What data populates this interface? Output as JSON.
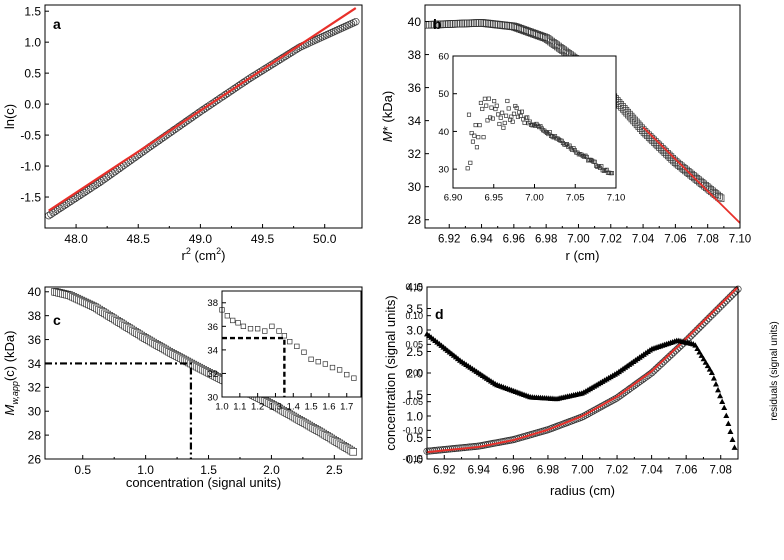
{
  "chart_data": [
    {
      "id": "a",
      "type": "scatter",
      "panel_label": "a",
      "xlabel_main": "r",
      "xlabel_sup": "2",
      "xlabel_unit": " (cm",
      "xlabel_unit_sup": "2",
      "xlabel_close": ")",
      "ylabel": "ln(c)",
      "xlim": [
        47.75,
        50.3
      ],
      "ylim": [
        -2.0,
        1.6
      ],
      "xticks": [
        48.0,
        48.5,
        49.0,
        49.5,
        50.0
      ],
      "xticklabels": [
        "48.0",
        "48.5",
        "49.0",
        "49.5",
        "50.0"
      ],
      "yticks": [
        -1.5,
        -1.0,
        -0.5,
        0.0,
        0.5,
        1.0,
        1.5
      ],
      "yticklabels": [
        "-1.5",
        "-1.0",
        "-0.5",
        "0.0",
        "0.5",
        "1.0",
        "1.5"
      ],
      "series": [
        {
          "name": "data",
          "marker": "circle",
          "x_range": [
            47.78,
            50.25
          ],
          "n": 140,
          "curve_x": [
            47.78,
            48.2,
            48.6,
            49.0,
            49.4,
            49.8,
            50.25
          ],
          "curve_y": [
            -1.8,
            -1.25,
            -0.68,
            -0.12,
            0.42,
            0.92,
            1.33
          ]
        },
        {
          "name": "fit",
          "color": "#e8302a",
          "line_x": [
            47.78,
            50.25
          ],
          "line_y": [
            -1.72,
            1.55
          ]
        }
      ]
    },
    {
      "id": "b",
      "type": "scatter",
      "panel_label": "b",
      "xlabel": "r (cm)",
      "ylabel_italic": "M",
      "ylabel_rest": "* (kDa)",
      "xlim": [
        6.905,
        7.1
      ],
      "ylim": [
        27.5,
        41.0
      ],
      "xticks": [
        6.92,
        6.94,
        6.96,
        6.98,
        7.0,
        7.02,
        7.04,
        7.06,
        7.08,
        7.1
      ],
      "xticklabels": [
        "6.92",
        "6.94",
        "6.96",
        "6.98",
        "7.00",
        "7.02",
        "7.04",
        "7.06",
        "7.08",
        "7.10"
      ],
      "yticks": [
        28,
        30,
        32,
        34,
        36,
        38,
        40
      ],
      "yticklabels": [
        "28",
        "30",
        "32",
        "34",
        "36",
        "38",
        "40"
      ],
      "series": [
        {
          "name": "data",
          "marker": "square",
          "x_range": [
            6.907,
            7.088
          ],
          "n": 170,
          "curve_x": [
            6.907,
            6.94,
            6.96,
            6.98,
            7.0,
            7.02,
            7.04,
            7.06,
            7.088
          ],
          "curve_y": [
            39.8,
            39.92,
            39.7,
            39.0,
            37.6,
            35.6,
            33.4,
            31.5,
            29.3
          ]
        },
        {
          "name": "fit",
          "color": "#e8302a",
          "line_x": [
            7.04,
            7.1
          ],
          "line_y": [
            33.6,
            27.8
          ]
        }
      ],
      "inset": {
        "xlim": [
          6.9,
          7.1
        ],
        "ylim": [
          25,
          60
        ],
        "xticks": [
          6.9,
          6.95,
          7.0,
          7.05,
          7.1
        ],
        "xticklabels": [
          "6.90",
          "6.95",
          "7.00",
          "7.05",
          "7.10"
        ],
        "yticks": [
          30,
          40,
          50,
          60
        ],
        "yticklabels": [
          "30",
          "40",
          "50",
          "60"
        ]
      }
    },
    {
      "id": "c",
      "type": "scatter",
      "panel_label": "c",
      "xlabel": "concentration (signal units)",
      "ylabel_italic": "M",
      "ylabel_sub": "w,app",
      "ylabel_rest": "(c) (kDa)",
      "xlim": [
        0.2,
        2.72
      ],
      "ylim": [
        26.0,
        40.4
      ],
      "xticks": [
        0.5,
        1.0,
        1.5,
        2.0,
        2.5
      ],
      "xticklabels": [
        "0.5",
        "1.0",
        "1.5",
        "2.0",
        "2.5"
      ],
      "yticks": [
        26,
        28,
        30,
        32,
        34,
        36,
        38,
        40
      ],
      "yticklabels": [
        "26",
        "28",
        "30",
        "32",
        "34",
        "36",
        "38",
        "40"
      ],
      "series": [
        {
          "name": "data",
          "marker": "square",
          "x_range": [
            0.28,
            2.65
          ],
          "n": 150,
          "curve_x": [
            0.28,
            0.4,
            0.6,
            0.8,
            1.0,
            1.2,
            1.36,
            1.6,
            2.0,
            2.4,
            2.65
          ],
          "curve_y": [
            40.0,
            39.7,
            38.7,
            37.4,
            36.1,
            34.9,
            34.0,
            32.7,
            30.6,
            28.2,
            26.6
          ]
        }
      ],
      "guide": {
        "x": 1.36,
        "y": 34.0
      },
      "inset": {
        "xlim": [
          1.0,
          1.78
        ],
        "ylim": [
          30,
          39
        ],
        "xticks": [
          1.0,
          1.1,
          1.2,
          1.3,
          1.4,
          1.5,
          1.6,
          1.7
        ],
        "xticklabels": [
          "1.0",
          "1.1",
          "1.2",
          "1.3",
          "1.4",
          "1.5",
          "1.6",
          "1.7"
        ],
        "yticks": [
          30,
          32,
          34,
          36,
          38
        ],
        "yticklabels": [
          "30",
          "32",
          "34",
          "36",
          "38"
        ],
        "points_x": [
          1.0,
          1.03,
          1.06,
          1.09,
          1.12,
          1.16,
          1.2,
          1.24,
          1.28,
          1.32,
          1.35,
          1.38,
          1.42,
          1.46,
          1.5,
          1.54,
          1.58,
          1.62,
          1.66,
          1.7,
          1.74
        ],
        "points_y": [
          37.4,
          36.9,
          36.5,
          36.3,
          36.0,
          35.8,
          35.8,
          35.6,
          36.0,
          35.6,
          35.2,
          34.7,
          34.3,
          33.8,
          33.2,
          33.0,
          32.8,
          32.5,
          32.3,
          31.9,
          31.6
        ],
        "guide": {
          "x": 1.35,
          "y": 35.0
        }
      }
    },
    {
      "id": "d",
      "type": "scatter",
      "panel_label": "d",
      "xlabel": "radius (cm)",
      "ylabel": "concentration (signal units)",
      "ylabel_right": "residuals (signal units)",
      "xlim": [
        6.91,
        7.09
      ],
      "ylim": [
        0.0,
        4.0
      ],
      "ylim_right": [
        -0.15,
        0.15
      ],
      "xticks": [
        6.92,
        6.94,
        6.96,
        6.98,
        7.0,
        7.02,
        7.04,
        7.06,
        7.08
      ],
      "xticklabels": [
        "6.92",
        "6.94",
        "6.96",
        "6.98",
        "7.00",
        "7.02",
        "7.04",
        "7.06",
        "7.08"
      ],
      "yticks": [
        0.0,
        0.5,
        1.0,
        1.5,
        2.0,
        2.5,
        3.0,
        3.5,
        4.0
      ],
      "yticklabels": [
        "0.0",
        "0.5",
        "1.0",
        "1.5",
        "2.0",
        "2.5",
        "3.0",
        "3.5",
        "4.0"
      ],
      "yticks_right": [
        -0.15,
        -0.1,
        -0.05,
        0.0,
        0.05,
        0.1,
        0.15
      ],
      "yticklabels_right": [
        "-0.15",
        "-0.10",
        "-0.05",
        "0.00",
        "0.05",
        "0.10",
        "0.15"
      ],
      "series": [
        {
          "name": "concentration data",
          "marker": "circle",
          "axis": "left",
          "x_range": [
            6.91,
            7.09
          ],
          "n": 160,
          "curve_x": [
            6.91,
            6.94,
            6.96,
            6.98,
            7.0,
            7.02,
            7.04,
            7.06,
            7.08,
            7.09
          ],
          "curve_y": [
            0.18,
            0.3,
            0.45,
            0.68,
            0.98,
            1.42,
            2.0,
            2.75,
            3.55,
            3.95
          ]
        },
        {
          "name": "fit",
          "color": "#e8302a",
          "axis": "left",
          "curve_x": [
            6.91,
            6.94,
            6.96,
            6.98,
            7.0,
            7.02,
            7.04,
            7.06,
            7.08,
            7.09
          ],
          "curve_y": [
            0.16,
            0.28,
            0.44,
            0.68,
            1.0,
            1.45,
            2.04,
            2.8,
            3.6,
            4.0
          ]
        },
        {
          "name": "residuals",
          "marker": "triangle",
          "axis": "right",
          "x_range": [
            6.91,
            7.088
          ],
          "n": 150,
          "curve_x": [
            6.91,
            6.93,
            6.95,
            6.97,
            6.985,
            7.0,
            7.02,
            7.04,
            7.055,
            7.065,
            7.075,
            7.082,
            7.088
          ],
          "curve_y": [
            0.068,
            0.02,
            -0.02,
            -0.042,
            -0.045,
            -0.035,
            0.0,
            0.042,
            0.057,
            0.05,
            0.0,
            -0.06,
            -0.13
          ]
        }
      ]
    }
  ]
}
